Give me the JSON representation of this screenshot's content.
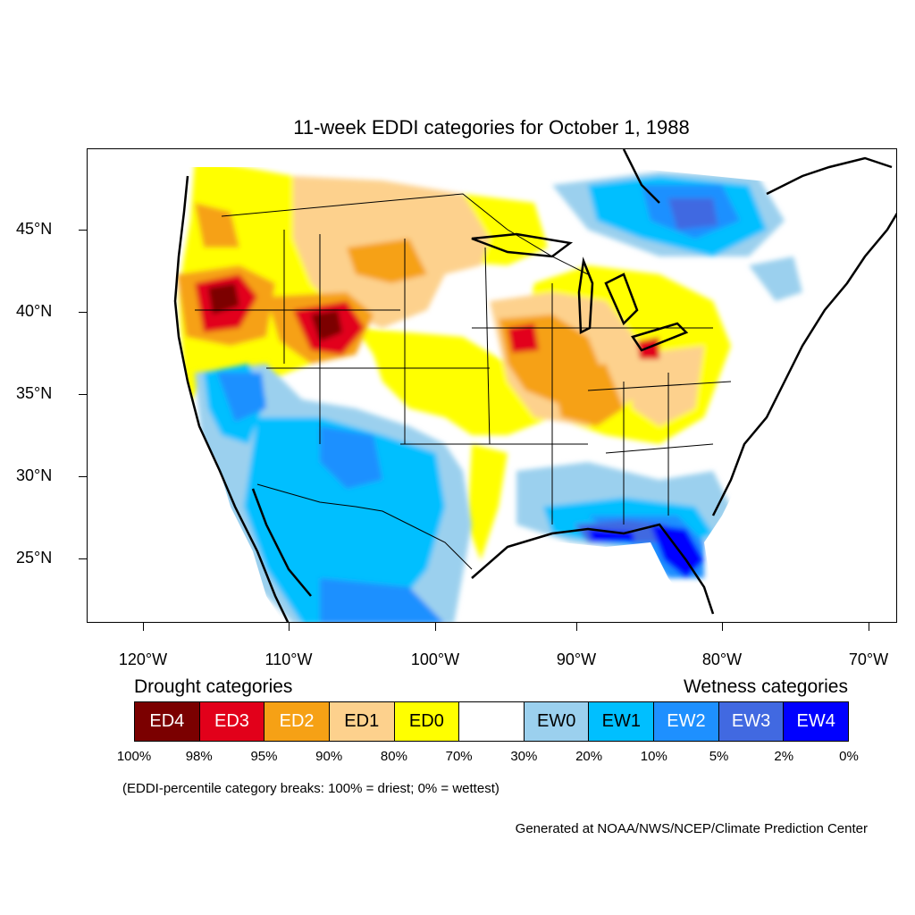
{
  "title": "11-week EDDI categories for October 1, 1988",
  "lat_labels": [
    "45°N",
    "40°N",
    "35°N",
    "30°N",
    "25°N"
  ],
  "lon_labels": [
    "120°W",
    "110°W",
    "100°W",
    "90°W",
    "80°W",
    "70°W"
  ],
  "drought_header": "Drought categories",
  "wetness_header": "Wetness categories",
  "legend": [
    {
      "label": "ED4",
      "color": "#7b0000",
      "text_color": "#ffffff"
    },
    {
      "label": "ED3",
      "color": "#e2001a",
      "text_color": "#ffffff"
    },
    {
      "label": "ED2",
      "color": "#f6a115",
      "text_color": "#ffffff"
    },
    {
      "label": "ED1",
      "color": "#fdd18d",
      "text_color": "#000000"
    },
    {
      "label": "ED0",
      "color": "#ffff00",
      "text_color": "#000000"
    },
    {
      "label": "",
      "color": "#ffffff",
      "text_color": "#000000"
    },
    {
      "label": "EW0",
      "color": "#9bd0ee",
      "text_color": "#000000"
    },
    {
      "label": "EW1",
      "color": "#00bfff",
      "text_color": "#000000"
    },
    {
      "label": "EW2",
      "color": "#1e90ff",
      "text_color": "#ffffff"
    },
    {
      "label": "EW3",
      "color": "#4169e1",
      "text_color": "#ffffff"
    },
    {
      "label": "EW4",
      "color": "#0000ff",
      "text_color": "#ffffff"
    }
  ],
  "percentiles": [
    "100%",
    "98%",
    "95%",
    "90%",
    "80%",
    "70%",
    "30%",
    "20%",
    "10%",
    "5%",
    "2%",
    "0%"
  ],
  "note": "(EDDI-percentile category breaks: 100% = driest; 0% = wettest)",
  "credit": "Generated at NOAA/NWS/NCEP/Climate Prediction Center"
}
